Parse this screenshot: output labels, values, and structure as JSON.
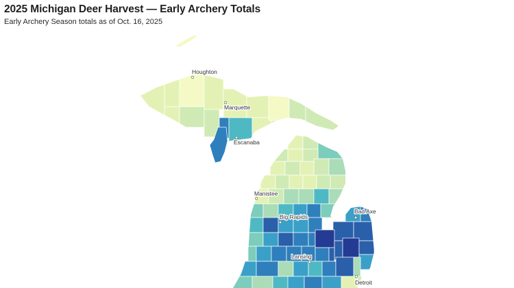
{
  "header": {
    "title": "2025 Michigan Deer Harvest — Early Archery Totals",
    "subtitle": "Early Archery Season totals as of Oct. 16, 2025"
  },
  "palette": {
    "lightest": "#f4f9c6",
    "light": "#e3f2b4",
    "pale_green": "#cfeab4",
    "mint": "#a9dcb7",
    "teal_light": "#7ccdbb",
    "teal": "#4fb9c3",
    "blue_light": "#3aa0c8",
    "blue": "#2f7fbc",
    "blue_dark": "#2a5faa",
    "navy": "#243b93",
    "outline": "#ffffff"
  },
  "map": {
    "cities": [
      {
        "name": "Houghton"
      },
      {
        "name": "Marquette"
      },
      {
        "name": "Escanaba"
      },
      {
        "name": "Manistee"
      },
      {
        "name": "Big Rapids"
      },
      {
        "name": "Bad Axe"
      },
      {
        "name": "Lansing"
      },
      {
        "name": "Detroit"
      }
    ]
  }
}
